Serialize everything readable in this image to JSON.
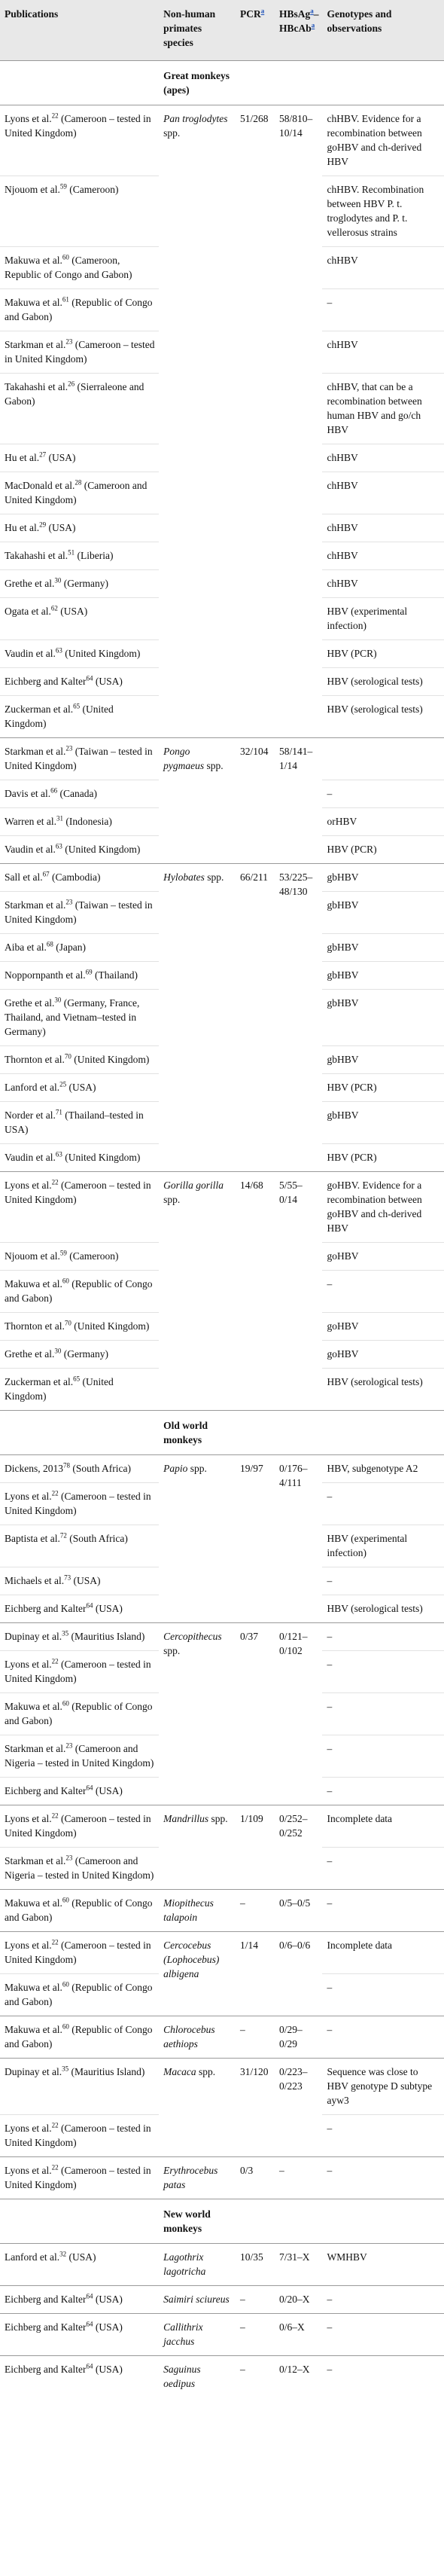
{
  "header": {
    "publications": "Publications",
    "species": "Non-human primates species",
    "pcr": {
      "label": "PCR",
      "note": "a"
    },
    "serology": {
      "parts": [
        "HBsAg",
        "a",
        "–HBcAb",
        "a"
      ]
    },
    "genotypes": "Genotypes and observations"
  },
  "groups": [
    {
      "title": "Great monkeys (apes)",
      "species": [
        {
          "name": "Pan troglodytes",
          "suffix": "spp.",
          "pcr": "51/268",
          "serology": "58/810–10/14",
          "studies": [
            {
              "author": "Lyons et al.",
              "ref": "22",
              "location": "(Cameroon – tested in United Kingdom)",
              "genotype": "chHBV. Evidence for a recombination between goHBV and ch-derived HBV"
            },
            {
              "author": "Njouom et al.",
              "ref": "59",
              "location": "(Cameroon)",
              "genotype": "chHBV. Recombination between HBV P. t. troglodytes and P. t. vellerosus strains"
            },
            {
              "author": "Makuwa et al.",
              "ref": "60",
              "location": "(Cameroon, Republic of Congo and Gabon)",
              "genotype": "chHBV"
            },
            {
              "author": "Makuwa et al.",
              "ref": "61",
              "location": "(Republic of Congo and Gabon)",
              "genotype": "–"
            },
            {
              "author": "Starkman et al.",
              "ref": "23",
              "location": "(Cameroon – tested in United Kingdom)",
              "genotype": "chHBV"
            },
            {
              "author": "Takahashi et al.",
              "ref": "26",
              "location": "(Sierraleone and Gabon)",
              "genotype": "chHBV, that can be a recombination between human HBV and go/ch HBV"
            },
            {
              "author": "Hu et al.",
              "ref": "27",
              "location": "(USA)",
              "genotype": "chHBV"
            },
            {
              "author": "MacDonald et al.",
              "ref": "28",
              "location": "(Cameroon and United Kingdom)",
              "genotype": "chHBV"
            },
            {
              "author": "Hu et al.",
              "ref": "29",
              "location": "(USA)",
              "genotype": "chHBV"
            },
            {
              "author": "Takahashi et al.",
              "ref": "51",
              "location": "(Liberia)",
              "genotype": "chHBV"
            },
            {
              "author": "Grethe et al.",
              "ref": "30",
              "location": "(Germany)",
              "genotype": "chHBV"
            },
            {
              "author": "Ogata et al.",
              "ref": "62",
              "location": "(USA)",
              "genotype": "HBV (experimental infection)"
            },
            {
              "author": "Vaudin et al.",
              "ref": "63",
              "location": "(United Kingdom)",
              "genotype": "HBV (PCR)"
            },
            {
              "author": "Eichberg and Kalter",
              "ref": "64",
              "location": "(USA)",
              "genotype": "HBV (serological tests)"
            },
            {
              "author": "Zuckerman et al.",
              "ref": "65",
              "location": "(United Kingdom)",
              "genotype": "HBV (serological tests)"
            }
          ]
        },
        {
          "name": "Pongo pygmaeus",
          "suffix": "spp.",
          "pcr": "32/104",
          "serology": "58/141–1/14",
          "studies": [
            {
              "author": "Starkman et al.",
              "ref": "23",
              "location": "(Taiwan – tested in United Kingdom)"
            },
            {
              "author": "Davis et al.",
              "ref": "66",
              "location": "(Canada)",
              "genotype": "–"
            },
            {
              "author": "Warren et al.",
              "ref": "31",
              "location": "(Indonesia)",
              "genotype": "orHBV"
            },
            {
              "author": "Vaudin et al.",
              "ref": "63",
              "location": "(United Kingdom)",
              "genotype": "HBV (PCR)"
            }
          ]
        },
        {
          "name": "Hylobates",
          "suffix": "spp.",
          "pcr": "66/211",
          "serology": "53/225–48/130",
          "studies": [
            {
              "author": "Sall et al.",
              "ref": "67",
              "location": "(Cambodia)",
              "genotype": "gbHBV"
            },
            {
              "author": "Starkman et al.",
              "ref": "23",
              "location": "(Taiwan – tested in United Kingdom)",
              "genotype": "gbHBV"
            },
            {
              "author": "Aiba et al.",
              "ref": "68",
              "location": "(Japan)",
              "genotype": "gbHBV"
            },
            {
              "author": "Noppornpanth et al.",
              "ref": "69",
              "location": "(Thailand)",
              "genotype": "gbHBV"
            },
            {
              "author": "Grethe et al.",
              "ref": "30",
              "location": "(Germany, France, Thailand, and Vietnam–tested in Germany)",
              "genotype": "gbHBV"
            },
            {
              "author": "Thornton et al.",
              "ref": "70",
              "location": "(United Kingdom)",
              "genotype": "gbHBV"
            },
            {
              "author": "Lanford et al.",
              "ref": "25",
              "location": "(USA)",
              "genotype": "HBV (PCR)"
            },
            {
              "author": "Norder et al.",
              "ref": "71",
              "location": "(Thailand–tested in USA)",
              "genotype": "gbHBV"
            },
            {
              "author": "Vaudin et al.",
              "ref": "63",
              "location": "(United Kingdom)",
              "genotype": "HBV (PCR)"
            }
          ]
        },
        {
          "name": "Gorilla gorilla",
          "suffix": "spp.",
          "pcr": "14/68",
          "serology": "5/55–0/14",
          "studies": [
            {
              "author": "Lyons et al.",
              "ref": "22",
              "location": "(Cameroon – tested in United Kingdom)",
              "genotype": "goHBV. Evidence for a recombination between goHBV and ch-derived HBV"
            },
            {
              "author": "Njouom et al.",
              "ref": "59",
              "location": "(Cameroon)",
              "genotype": "goHBV"
            },
            {
              "author": "Makuwa et al.",
              "ref": "60",
              "location": "(Republic of Congo and Gabon)",
              "genotype": "–"
            },
            {
              "author": "Thornton et al.",
              "ref": "70",
              "location": "(United Kingdom)",
              "genotype": "goHBV"
            },
            {
              "author": "Grethe et al.",
              "ref": "30",
              "location": "(Germany)",
              "genotype": "goHBV"
            },
            {
              "author": "Zuckerman et al.",
              "ref": "65",
              "location": "(United Kingdom)",
              "genotype": "HBV (serological tests)"
            }
          ]
        }
      ]
    },
    {
      "title": "Old world monkeys",
      "species": [
        {
          "name": "Papio",
          "suffix": "spp.",
          "pcr": "19/97",
          "serology": "0/176–4/111",
          "studies": [
            {
              "author": "Dickens, 2013",
              "ref": "78",
              "location": "(South Africa)",
              "genotype": "HBV, subgenotype A2"
            },
            {
              "author": "Lyons et al.",
              "ref": "22",
              "location": "(Cameroon – tested in United Kingdom)",
              "genotype": "–"
            },
            {
              "author": "Baptista et al.",
              "ref": "72",
              "location": "(South Africa)",
              "genotype": "HBV (experimental infection)"
            },
            {
              "author": "Michaels et al.",
              "ref": "73",
              "location": "(USA)",
              "genotype": "–"
            },
            {
              "author": "Eichberg and Kalter",
              "ref": "64",
              "location": "(USA)",
              "genotype": "HBV (serological tests)"
            }
          ]
        },
        {
          "name": "Cercopithecus",
          "suffix": "spp.",
          "pcr": "0/37",
          "serology": "0/121–0/102",
          "studies": [
            {
              "author": "Dupinay et al.",
              "ref": "35",
              "location": "(Mauritius Island)",
              "genotype": "–"
            },
            {
              "author": "Lyons et al.",
              "ref": "22",
              "location": "(Cameroon – tested in United Kingdom)",
              "genotype": "–"
            },
            {
              "author": "Makuwa et al.",
              "ref": "60",
              "location": "(Republic of Congo and Gabon)",
              "genotype": "–"
            },
            {
              "author": "Starkman et al.",
              "ref": "23",
              "location": "(Cameroon and Nigeria – tested in United Kingdom)",
              "genotype": "–"
            },
            {
              "author": "Eichberg and Kalter",
              "ref": "64",
              "location": "(USA)",
              "genotype": "–"
            }
          ]
        },
        {
          "name": "Mandrillus",
          "suffix": "spp.",
          "pcr": "1/109",
          "serology": "0/252–0/252",
          "studies": [
            {
              "author": "Lyons et al.",
              "ref": "22",
              "location": "(Cameroon – tested in United Kingdom)",
              "genotype": "Incomplete data"
            },
            {
              "author": "Starkman et al.",
              "ref": "23",
              "location": "(Cameroon and Nigeria – tested in United Kingdom)",
              "genotype": "–"
            }
          ]
        },
        {
          "name": "Miopithecus talapoin",
          "pcr": "–",
          "serology": "0/5–0/5",
          "studies": [
            {
              "author": "Makuwa et al.",
              "ref": "60",
              "location": "(Republic of Congo and Gabon)",
              "genotype": "–"
            }
          ]
        },
        {
          "name": "Cercocebus (Lophocebus) albigena",
          "pcr": "1/14",
          "serology": "0/6–0/6",
          "studies": [
            {
              "author": "Lyons et al.",
              "ref": "22",
              "location": "(Cameroon – tested in United Kingdom)",
              "genotype": "Incomplete data"
            },
            {
              "author": "Makuwa et al.",
              "ref": "60",
              "location": "(Republic of Congo and Gabon)",
              "genotype": "–"
            }
          ]
        },
        {
          "name": "Chlorocebus aethiops",
          "pcr": "–",
          "serology": "0/29–0/29",
          "studies": [
            {
              "author": "Makuwa et al.",
              "ref": "60",
              "location": "(Republic of Congo and Gabon)",
              "genotype": "–"
            }
          ]
        },
        {
          "name": "Macaca",
          "suffix": "spp.",
          "pcr": "31/120",
          "serology": "0/223–0/223",
          "studies": [
            {
              "author": "Dupinay et al.",
              "ref": "35",
              "location": "(Mauritius Island)",
              "genotype": "Sequence was close to HBV genotype D subtype ayw3"
            },
            {
              "author": "Lyons et al.",
              "ref": "22",
              "location": "(Cameroon – tested in United Kingdom)",
              "genotype": "–"
            }
          ]
        },
        {
          "name": "Erythrocebus patas",
          "pcr": "0/3",
          "serology": "–",
          "studies": [
            {
              "author": "Lyons et al.",
              "ref": "22",
              "location": "(Cameroon – tested in United Kingdom)",
              "genotype": "–"
            }
          ]
        }
      ]
    },
    {
      "title": "New world monkeys",
      "species": [
        {
          "name": "Lagothrix lagotricha",
          "pcr": "10/35",
          "serology": "7/31–X",
          "studies": [
            {
              "author": "Lanford et al.",
              "ref": "32",
              "location": "(USA)",
              "genotype": "WMHBV"
            }
          ]
        },
        {
          "name": "Saimiri sciureus",
          "pcr": "–",
          "serology": "0/20–X",
          "studies": [
            {
              "author": "Eichberg and Kalter",
              "ref": "64",
              "location": "(USA)",
              "genotype": "–"
            }
          ]
        },
        {
          "name": "Callithrix jacchus",
          "pcr": "–",
          "serology": "0/6–X",
          "studies": [
            {
              "author": "Eichberg and Kalter",
              "ref": "64",
              "location": "(USA)",
              "genotype": "–"
            }
          ]
        },
        {
          "name": "Saguinus oedipus",
          "pcr": "–",
          "serology": "0/12–X",
          "studies": [
            {
              "author": "Eichberg and Kalter",
              "ref": "64",
              "location": "(USA)",
              "genotype": "–"
            }
          ]
        }
      ]
    }
  ]
}
